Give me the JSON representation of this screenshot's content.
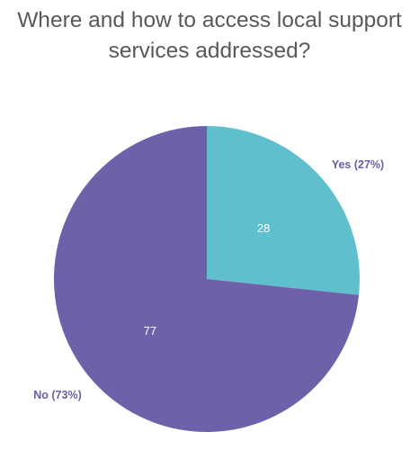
{
  "chart_data": {
    "type": "pie",
    "title_lines": [
      "Where and how to access local support",
      "services addressed?"
    ],
    "slices": [
      {
        "category": "Yes",
        "value": 28,
        "label": "Yes (27%)",
        "color": "#5fbfcc"
      },
      {
        "category": "No",
        "value": 77,
        "label": "No (73%)",
        "color": "#6e60a9"
      }
    ],
    "legend": "none"
  }
}
